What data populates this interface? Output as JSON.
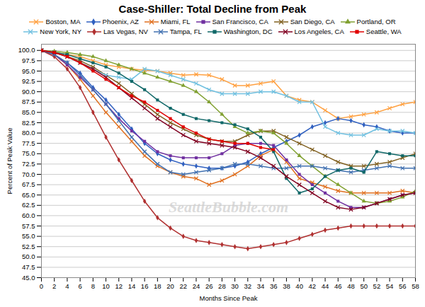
{
  "chart_data": {
    "type": "line",
    "title": "Case-Shiller: Total Decline from Peak",
    "xlabel": "Months Since Peak",
    "ylabel": "Percent of Peak Value",
    "annotations": [
      "SeattleBubble.com"
    ],
    "x": [
      0,
      2,
      4,
      6,
      8,
      10,
      12,
      14,
      16,
      18,
      20,
      22,
      24,
      26,
      28,
      30,
      32,
      34,
      36,
      38,
      40,
      42,
      44,
      46,
      48,
      50,
      52,
      54,
      56,
      58
    ],
    "xlim": [
      0,
      58
    ],
    "xticks": [
      0,
      2,
      4,
      6,
      8,
      10,
      12,
      14,
      16,
      18,
      20,
      22,
      24,
      26,
      28,
      30,
      32,
      34,
      36,
      38,
      40,
      42,
      44,
      46,
      48,
      50,
      52,
      54,
      56,
      58
    ],
    "ylim": [
      45,
      101.5
    ],
    "yticks": [
      {
        "value": 45,
        "label": "45.0"
      },
      47.5,
      {
        "value": 50,
        "label": "50.0"
      },
      52.5,
      {
        "value": 55,
        "label": "55.0"
      },
      57.5,
      {
        "value": 60,
        "label": "60.0"
      },
      62.5,
      {
        "value": 65,
        "label": "65.0"
      },
      67.5,
      {
        "value": 70,
        "label": "70.0"
      },
      72.5,
      {
        "value": 75,
        "label": "75.0"
      },
      77.5,
      {
        "value": 80,
        "label": "80.0"
      },
      82.5,
      {
        "value": 85,
        "label": "85.0"
      },
      87.5,
      {
        "value": 90,
        "label": "90.0"
      },
      92.5,
      {
        "value": 95,
        "label": "95.0"
      },
      97.5,
      {
        "value": 100,
        "label": "100.0"
      }
    ],
    "grid": "y",
    "legend": "top",
    "series": [
      {
        "name": "Boston, MA",
        "color": "#FFA040",
        "marker": "x",
        "values": [
          100,
          99.5,
          99.0,
          98.5,
          97.5,
          96.5,
          96.0,
          95.5,
          95.2,
          95.0,
          94.5,
          94.0,
          94.2,
          94.0,
          93.0,
          91.5,
          91.5,
          92.0,
          92.5,
          89.0,
          88.0,
          87.5,
          85.5,
          83.5,
          84.0,
          84.5,
          85.0,
          86.0,
          87.0,
          87.5
        ]
      },
      {
        "name": "Phoenix, AZ",
        "color": "#3060C0",
        "marker": "diamond",
        "values": [
          100,
          99.0,
          97.0,
          94.5,
          91.0,
          88.0,
          84.5,
          81.0,
          77.5,
          75.0,
          73.5,
          72.5,
          72.0,
          71.5,
          71.5,
          72.0,
          73.0,
          75.0,
          76.5,
          78.0,
          79.5,
          81.5,
          82.5,
          83.5,
          83.0,
          82.0,
          81.5,
          80.5,
          80.0,
          80.0
        ]
      },
      {
        "name": "Miami, FL",
        "color": "#E07020",
        "marker": "x",
        "values": [
          100,
          99.0,
          96.5,
          93.0,
          89.0,
          85.0,
          81.5,
          78.0,
          74.5,
          72.0,
          70.5,
          69.5,
          69.0,
          67.5,
          68.5,
          70.0,
          72.0,
          74.5,
          76.0,
          73.0,
          69.0,
          68.0,
          67.0,
          66.0,
          65.5,
          65.5,
          65.5,
          65.5,
          66.0,
          65.5
        ]
      },
      {
        "name": "San Francisco, CA",
        "color": "#7030A0",
        "marker": "square",
        "values": [
          100,
          99.0,
          96.5,
          93.5,
          90.5,
          87.0,
          83.5,
          80.5,
          78.0,
          75.5,
          74.5,
          74.0,
          74.0,
          74.0,
          75.0,
          77.0,
          77.5,
          77.5,
          77.0,
          73.5,
          70.0,
          67.5,
          65.5,
          63.5,
          62.0,
          62.0,
          63.0,
          64.0,
          65.0,
          65.5
        ]
      },
      {
        "name": "San Diego, CA",
        "color": "#806020",
        "marker": "x",
        "values": [
          100,
          99.5,
          98.5,
          97.5,
          96.0,
          94.0,
          92.0,
          89.5,
          87.0,
          84.5,
          82.5,
          81.0,
          79.5,
          78.5,
          78.0,
          78.0,
          79.5,
          80.5,
          80.5,
          79.0,
          77.5,
          76.0,
          74.5,
          73.0,
          72.0,
          72.0,
          72.5,
          73.0,
          74.0,
          75.0
        ]
      },
      {
        "name": "Portland, OR",
        "color": "#80A030",
        "marker": "triangle",
        "values": [
          100,
          99.8,
          99.5,
          99.0,
          98.5,
          97.5,
          96.5,
          95.5,
          94.5,
          93.5,
          92.5,
          91.5,
          90.0,
          87.5,
          84.5,
          81.5,
          80.0,
          80.5,
          80.0,
          77.5,
          74.5,
          72.0,
          69.5,
          67.5,
          65.5,
          63.5,
          63.0,
          63.5,
          64.5,
          66.0
        ]
      },
      {
        "name": "New York, NY",
        "color": "#70C0E0",
        "marker": "x",
        "values": [
          100,
          99.5,
          98.5,
          97.0,
          95.5,
          94.0,
          93.5,
          93.0,
          95.5,
          95.0,
          94.0,
          93.0,
          92.0,
          90.5,
          89.5,
          89.5,
          89.5,
          90.0,
          90.0,
          89.0,
          87.5,
          87.5,
          81.5,
          80.0,
          79.5,
          79.5,
          81.0,
          80.5,
          80.5,
          80.0
        ]
      },
      {
        "name": "Las Vegas, NV",
        "color": "#B03030",
        "marker": "diamond",
        "values": [
          100,
          98.5,
          95.5,
          91.0,
          85.0,
          79.0,
          73.5,
          68.5,
          63.5,
          59.5,
          57.0,
          55.0,
          54.0,
          53.5,
          53.0,
          52.5,
          52.0,
          52.5,
          53.0,
          53.5,
          54.5,
          55.5,
          56.5,
          57.0,
          57.5,
          57.5,
          57.5,
          57.5,
          57.5,
          57.5
        ]
      },
      {
        "name": "Tampa, FL",
        "color": "#4070B0",
        "marker": "x",
        "values": [
          100,
          99.0,
          97.0,
          94.0,
          90.5,
          87.0,
          83.0,
          79.0,
          75.5,
          72.5,
          70.5,
          70.0,
          70.5,
          71.0,
          71.5,
          72.5,
          72.5,
          72.0,
          71.5,
          71.5,
          72.0,
          72.0,
          71.5,
          71.0,
          70.5,
          71.0,
          71.5,
          72.0,
          71.5,
          71.5
        ]
      },
      {
        "name": "Washington, DC",
        "color": "#106868",
        "marker": "square",
        "values": [
          100,
          99.5,
          99.0,
          98.0,
          97.0,
          96.0,
          94.5,
          92.5,
          90.5,
          88.0,
          86.0,
          84.5,
          83.5,
          83.0,
          82.5,
          82.0,
          81.0,
          79.0,
          75.5,
          69.0,
          65.5,
          66.5,
          69.5,
          71.0,
          71.5,
          70.5,
          75.5,
          75.0,
          74.5,
          74.5
        ]
      },
      {
        "name": "Los Angeles, CA",
        "color": "#800020",
        "marker": "x",
        "values": [
          100,
          99.5,
          98.5,
          97.0,
          95.5,
          93.5,
          91.0,
          88.5,
          86.0,
          83.5,
          81.5,
          79.5,
          78.0,
          77.5,
          77.0,
          76.5,
          75.5,
          74.0,
          72.0,
          69.5,
          67.5,
          65.5,
          63.5,
          62.0,
          61.5,
          62.0,
          63.0,
          64.0,
          65.0,
          65.5
        ]
      },
      {
        "name": "Seattle, WA",
        "color": "#E00000",
        "marker": "square",
        "values": [
          100,
          99.5,
          98.5,
          97.0,
          95.0,
          93.0,
          91.0,
          89.0,
          87.5,
          85.5,
          83.5,
          81.5,
          80.0,
          78.5,
          78.0,
          77.5,
          77.5,
          76.5,
          76.0,
          null,
          null,
          null,
          null,
          null,
          null,
          null,
          null,
          null,
          null,
          null
        ]
      }
    ]
  }
}
